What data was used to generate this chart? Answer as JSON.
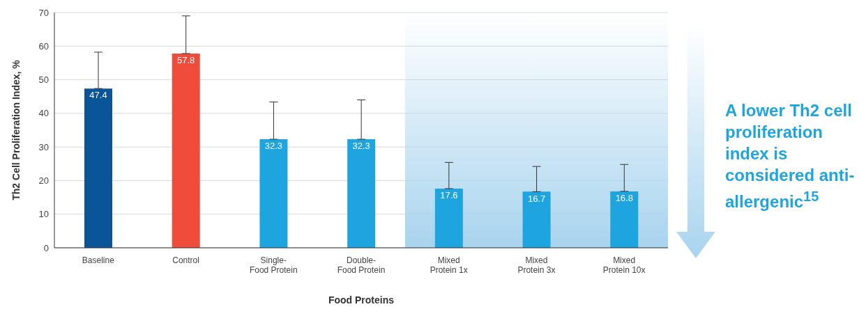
{
  "chart_data": {
    "type": "bar",
    "xlabel": "Food Proteins",
    "ylabel": "Th2 Cell Proliferation Index, %",
    "categories": [
      "Baseline",
      "Control",
      "Single-\nFood Protein",
      "Double-\nFood Protein",
      "Mixed\nProtein 1x",
      "Mixed\nProtein 3x",
      "Mixed\nProtein 10x"
    ],
    "values": [
      47.4,
      57.8,
      32.3,
      32.3,
      17.6,
      16.7,
      16.8
    ],
    "colors": [
      "#0a5499",
      "#ef4c3c",
      "#1ea5e0",
      "#1ea5e0",
      "#1ea5e0",
      "#1ea5e0",
      "#1ea5e0"
    ],
    "errors": [
      [
        47.4,
        58.2
      ],
      [
        57.8,
        69.0
      ],
      [
        32.3,
        43.4
      ],
      [
        32.3,
        44.0
      ],
      [
        17.6,
        25.4
      ],
      [
        16.7,
        24.2
      ],
      [
        16.8,
        24.8
      ]
    ],
    "ylim": [
      0,
      70
    ],
    "yticks": [
      0,
      10,
      20,
      30,
      40,
      50,
      60,
      70
    ],
    "grid": "y",
    "legend": false,
    "data_labels": true,
    "bands": [
      {
        "axis": "x",
        "from": "Mixed\nProtein 1x",
        "to": "Mixed\nProtein 10x",
        "color": "#a8d4ee"
      }
    ],
    "annotations": [
      "A lower Th2 cell proliferation index is considered anti-allergenic$^{15}$"
    ]
  }
}
